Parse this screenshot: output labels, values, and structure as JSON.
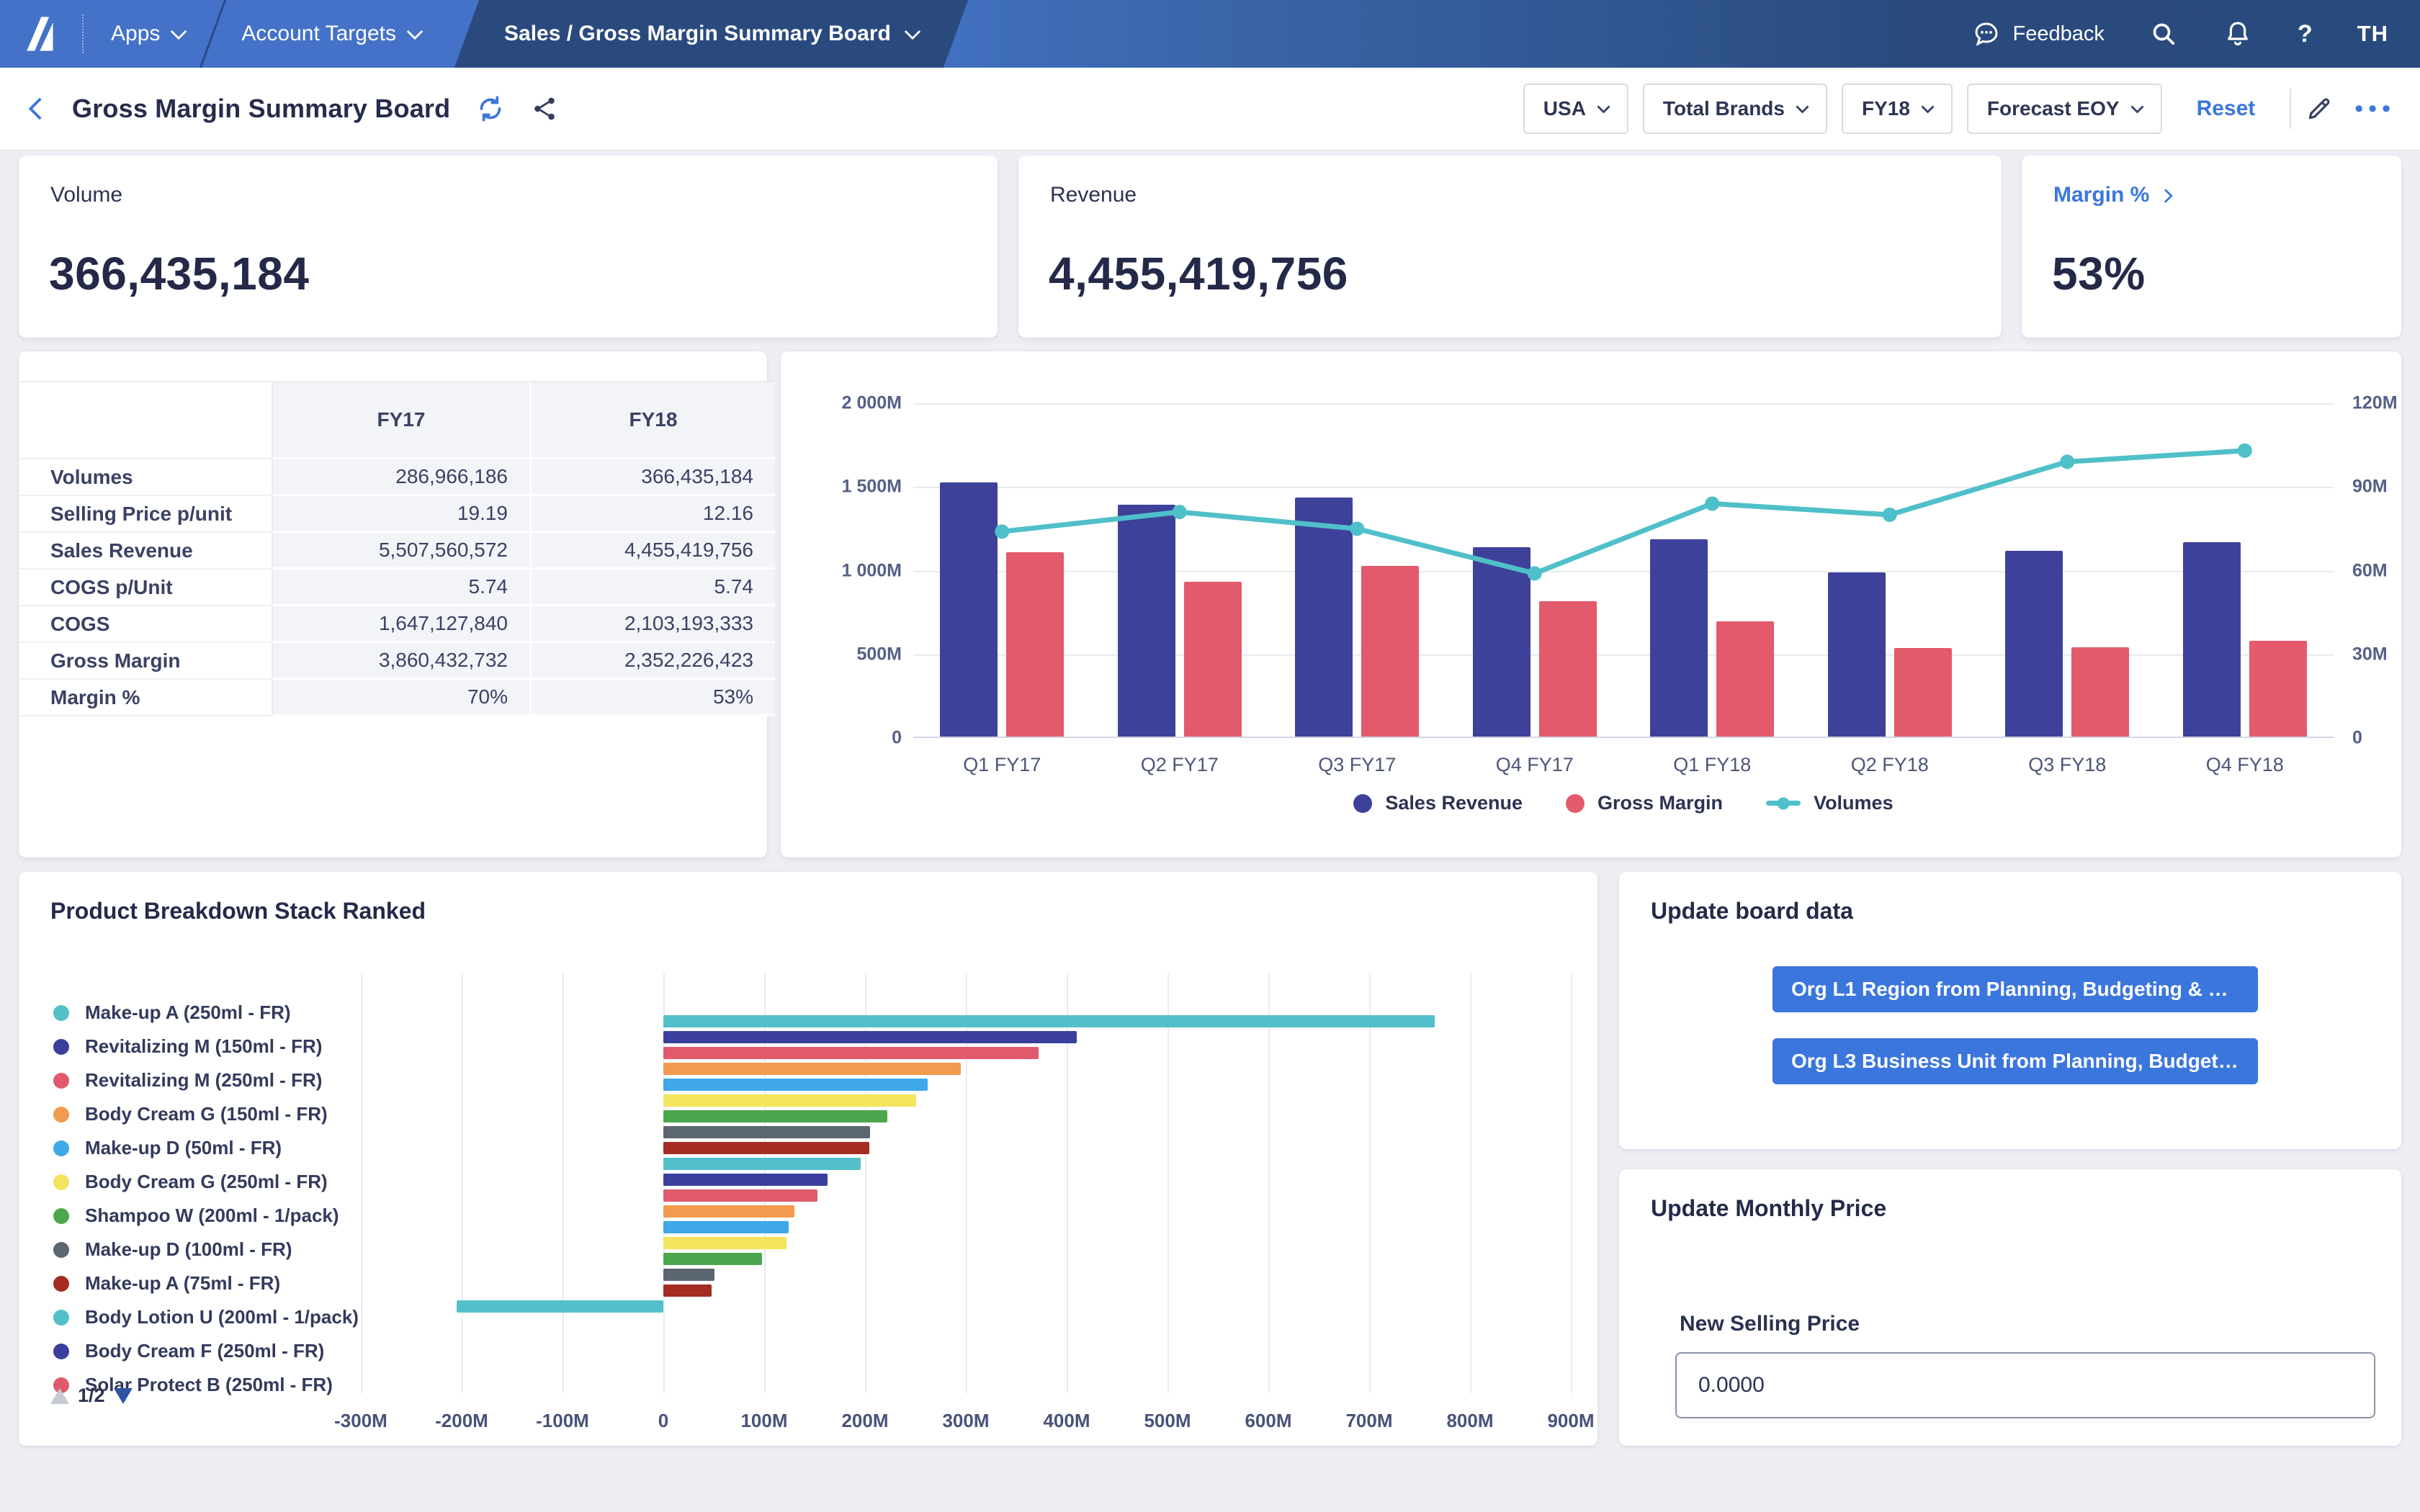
{
  "topbar": {
    "apps_label": "Apps",
    "workspace_label": "Account Targets",
    "active_tab": "Sales / Gross Margin Summary Board",
    "feedback_label": "Feedback",
    "help_label": "?",
    "user_initials": "TH"
  },
  "header": {
    "title": "Gross Margin Summary Board",
    "filters": [
      {
        "label": "USA"
      },
      {
        "label": "Total Brands"
      },
      {
        "label": "FY18"
      },
      {
        "label": "Forecast EOY"
      }
    ],
    "reset_label": "Reset",
    "more_label": "•••"
  },
  "kpis": [
    {
      "label": "Volume",
      "value": "366,435,184"
    },
    {
      "label": "Revenue",
      "value": "4,455,419,756"
    },
    {
      "label": "Margin %",
      "value": "53%"
    }
  ],
  "comparison_table": {
    "columns": [
      "",
      "FY17",
      "FY18"
    ],
    "rows": [
      {
        "label": "Volumes",
        "fy17": "286,966,186",
        "fy18": "366,435,184"
      },
      {
        "label": "Selling Price p/unit",
        "fy17": "19.19",
        "fy18": "12.16"
      },
      {
        "label": "Sales Revenue",
        "fy17": "5,507,560,572",
        "fy18": "4,455,419,756"
      },
      {
        "label": "COGS p/Unit",
        "fy17": "5.74",
        "fy18": "5.74"
      },
      {
        "label": "COGS",
        "fy17": "1,647,127,840",
        "fy18": "2,103,193,333"
      },
      {
        "label": "Gross Margin",
        "fy17": "3,860,432,732",
        "fy18": "2,352,226,423"
      },
      {
        "label": "Margin %",
        "fy17": "70%",
        "fy18": "53%"
      }
    ]
  },
  "chart_data": [
    {
      "type": "bar+line",
      "categories": [
        "Q1 FY17",
        "Q2 FY17",
        "Q3 FY17",
        "Q4 FY17",
        "Q1 FY18",
        "Q2 FY18",
        "Q3 FY18",
        "Q4 FY18"
      ],
      "series": [
        {
          "name": "Sales Revenue",
          "axis": "left",
          "unit": "M",
          "color": "#3e4199",
          "values": [
            1520,
            1385,
            1430,
            1130,
            1180,
            980,
            1110,
            1160
          ]
        },
        {
          "name": "Gross Margin",
          "axis": "left",
          "unit": "M",
          "color": "#e25a6b",
          "values": [
            1100,
            925,
            1020,
            810,
            690,
            530,
            535,
            570
          ]
        },
        {
          "name": "Volumes",
          "axis": "right",
          "unit": "M",
          "color": "#4fc0c9",
          "values": [
            74,
            81,
            75,
            59,
            84,
            80,
            99,
            103
          ]
        }
      ],
      "left_axis": {
        "ticks": [
          "2 000M",
          "1 500M",
          "1 000M",
          "500M",
          "0"
        ],
        "max": 2000,
        "min": 0
      },
      "right_axis": {
        "ticks": [
          "120M",
          "90M",
          "60M",
          "30M",
          "0"
        ],
        "max": 120,
        "min": 0
      },
      "grid": true,
      "legend_position": "bottom"
    },
    {
      "type": "bar",
      "title": "Product Breakdown Stack Ranked",
      "orientation": "horizontal",
      "unit": "M",
      "values": [
        765,
        410,
        372,
        295,
        262,
        251,
        222,
        205,
        204,
        196,
        163,
        153,
        130,
        124,
        122,
        98,
        51,
        48,
        -205
      ],
      "x_ticks": [
        "-300M",
        "-200M",
        "-100M",
        "0",
        "100M",
        "200M",
        "300M",
        "400M",
        "500M",
        "600M",
        "700M",
        "800M",
        "900M"
      ],
      "xlim": [
        -300,
        900
      ],
      "palette": [
        "#53bfc9",
        "#3a3f9e",
        "#e05a6c",
        "#f29a4e",
        "#3fa8e8",
        "#f4e35c",
        "#4ba64e",
        "#5b6672",
        "#a42c22"
      ],
      "legend": [
        "Make-up A (250ml - FR)",
        "Revitalizing M (150ml - FR)",
        "Revitalizing M (250ml - FR)",
        "Body Cream G (150ml - FR)",
        "Make-up D (50ml - FR)",
        "Body Cream G (250ml - FR)",
        "Shampoo W (200ml - 1/pack)",
        "Make-up D (100ml - FR)",
        "Make-up A (75ml - FR)",
        "Body Lotion U (200ml - 1/pack)",
        "Body Cream F (250ml - FR)",
        "Solar Protect B (250ml - FR)"
      ],
      "pager": "1/2"
    }
  ],
  "update_board": {
    "title": "Update board data",
    "buttons": [
      {
        "label": "Org L1 Region from Planning, Budgeting & Fo..."
      },
      {
        "label": "Org L3 Business Unit from Planning, Budgeti..."
      }
    ]
  },
  "update_price": {
    "title": "Update Monthly Price",
    "field_label": "New Selling Price",
    "field_value": "0.0000"
  },
  "colors": {
    "accent_blue": "#3b76dd",
    "topbar_blue": "#4472c8",
    "topbar_dark": "#2a4a7e",
    "bar_indigo": "#3e4199",
    "bar_red": "#e25a6b",
    "line_teal": "#4fc0c9"
  }
}
